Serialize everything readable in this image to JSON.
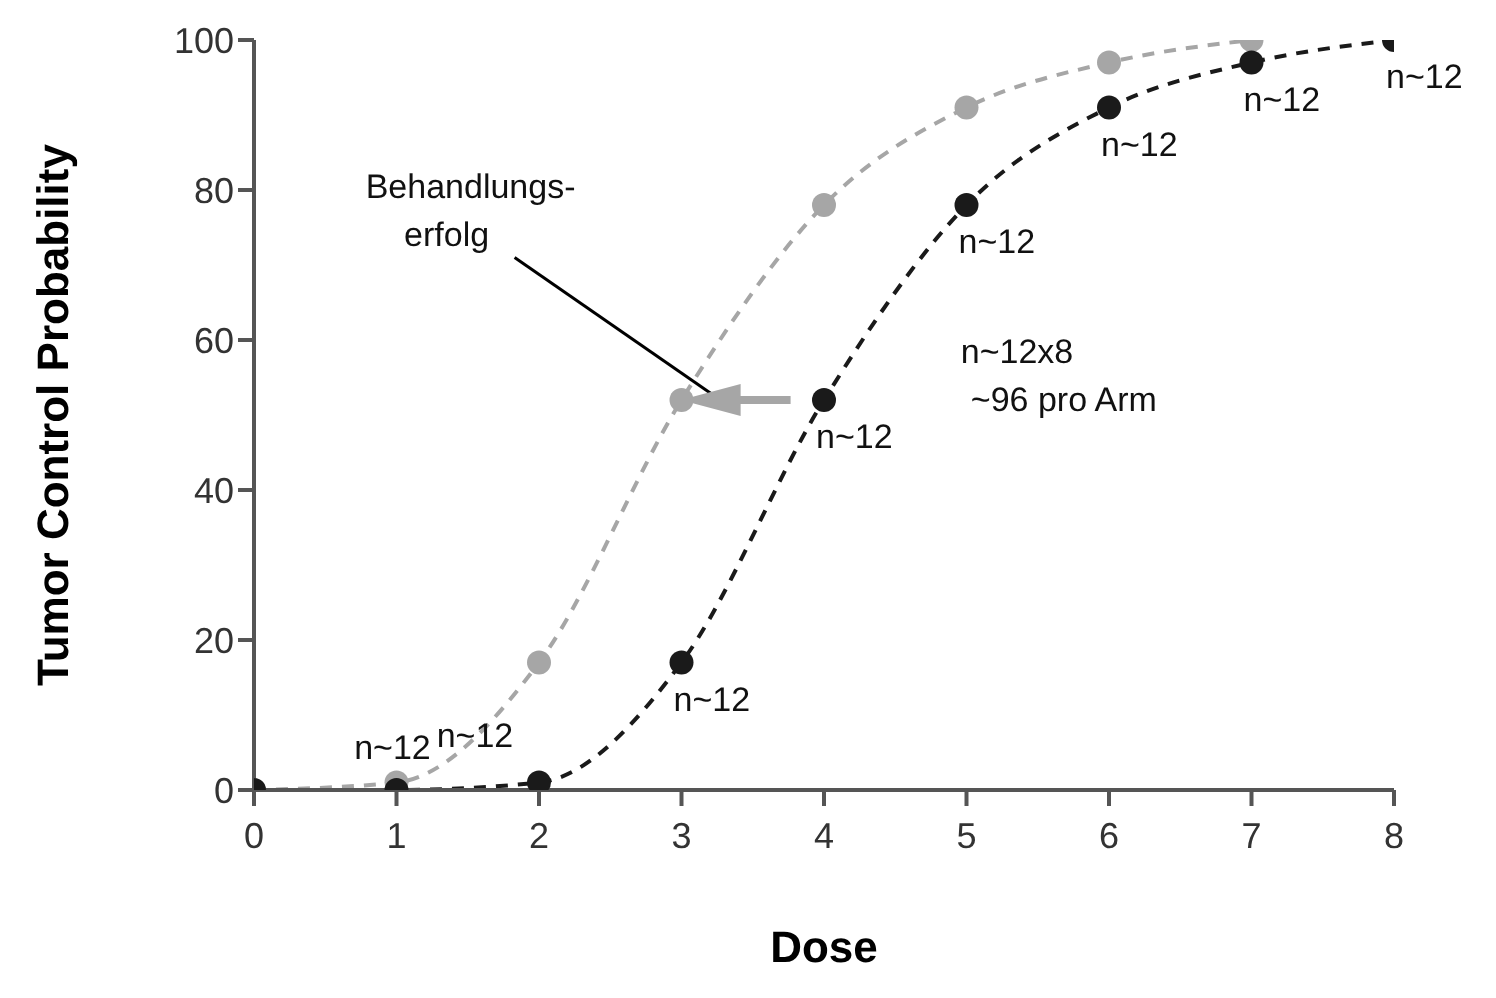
{
  "chart_data": {
    "type": "line",
    "xlabel": "Dose",
    "ylabel": "Tumor Control Probability",
    "xlim": [
      0,
      8
    ],
    "xticks": [
      0,
      1,
      2,
      3,
      4,
      5,
      6,
      7,
      8
    ],
    "ylim": [
      0,
      100
    ],
    "yticks": [
      0,
      20,
      40,
      60,
      80,
      100
    ],
    "grid": false,
    "marker": "circle",
    "line_style": "dashed",
    "series": [
      {
        "color": "#a6a6a6",
        "x": [
          0,
          1,
          2,
          3,
          4,
          5,
          6,
          7
        ],
        "values": [
          0,
          1,
          17,
          52,
          78,
          91,
          97,
          100
        ]
      },
      {
        "color": "#1a1a1a",
        "x": [
          0,
          1,
          2,
          3,
          4,
          5,
          6,
          7,
          8
        ],
        "values": [
          0,
          0,
          1,
          17,
          52,
          78,
          91,
          97,
          100
        ]
      }
    ],
    "annotations": [
      {
        "text": "n~12",
        "x": 1,
        "y": 1
      },
      {
        "text": "n~12",
        "x": 2,
        "y": 1
      },
      {
        "text": "n~12",
        "x": 3,
        "y": 17
      },
      {
        "text": "n~12",
        "x": 4,
        "y": 52
      },
      {
        "text": "n~12",
        "x": 5,
        "y": 78
      },
      {
        "text": "n~12",
        "x": 6,
        "y": 91
      },
      {
        "text": "n~12",
        "x": 7,
        "y": 97
      },
      {
        "text": "n~12",
        "x": 8,
        "y": 100
      },
      "Behandlungs-\nerfolg",
      "n~12x8\n~96 pro Arm"
    ]
  }
}
